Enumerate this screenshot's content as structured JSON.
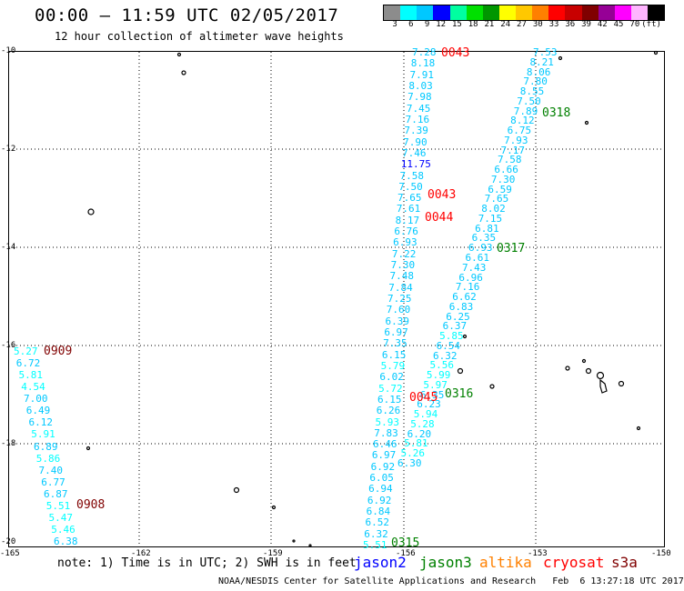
{
  "header": {
    "title": "00:00 – 11:59 UTC 02/05/2017",
    "subtitle": "12 hour collection of altimeter wave heights"
  },
  "colorbar": {
    "colors": [
      "#8c8c8c",
      "#00ffff",
      "#00c8ff",
      "#0000ff",
      "#00ffa0",
      "#00e000",
      "#009600",
      "#ffff00",
      "#ffc800",
      "#ff8000",
      "#ff0000",
      "#c80000",
      "#800000",
      "#960096",
      "#ff00ff",
      "#ffb4ff",
      "#000000"
    ],
    "labels": [
      "3",
      "6",
      "9",
      "12",
      "15",
      "18",
      "21",
      "24",
      "27",
      "30",
      "33",
      "36",
      "39",
      "42",
      "45",
      "70",
      "(ft)"
    ]
  },
  "axes": {
    "y_labels": [
      "-10",
      "-12",
      "-14",
      "-16",
      "-18",
      "-20"
    ],
    "x_labels": [
      "-165",
      "-162",
      "-159",
      "-156",
      "-153",
      "-150"
    ]
  },
  "tracks": [
    {
      "pass": "0043",
      "color": "#ff0000",
      "values": [
        "7.28",
        "8.18",
        "7.91",
        "8.03",
        "7.98",
        "7.45",
        "7.16",
        "7.39",
        "7.90",
        "7.46",
        "11.75",
        "7.58",
        "7.50",
        "7.65",
        "7.61",
        "8.17",
        "6.76",
        "6.93",
        "7.22",
        "7.30",
        "7.48",
        "7.84",
        "7.25",
        "7.60",
        "6.39",
        "6.97",
        "7.35",
        "6.15",
        "5.79",
        "6.02",
        "5.72",
        "6.15",
        "6.26",
        "5.93",
        "7.83",
        "6.46",
        "6.97",
        "6.92",
        "6.05",
        "6.94",
        "6.92",
        "6.84",
        "6.52",
        "6.32",
        "5.51"
      ]
    },
    {
      "pass": "0318",
      "color": "#008000",
      "values": [
        "7.53",
        "8.21",
        "8.06",
        "7.80",
        "8.55",
        "7.50",
        "7.89",
        "8.12",
        "6.75",
        "7.93",
        "7.17",
        "7.58",
        "6.66",
        "7.30",
        "6.59",
        "7.65",
        "8.02",
        "7.15",
        "6.81",
        "6.35",
        "6.93",
        "6.61",
        "7.43",
        "6.96",
        "7.16",
        "6.62",
        "6.83",
        "6.25",
        "6.37",
        "5.85",
        "6.54",
        "6.32",
        "5.56",
        "5.99",
        "5.97",
        "6.35",
        "6.23",
        "5.94",
        "5.28",
        "6.20",
        "5.81",
        "5.26",
        "6.30"
      ]
    },
    {
      "pass": "0909",
      "color": "#800000",
      "values": [
        "5.27",
        "6.72",
        "5.81",
        "4.54",
        "7.00",
        "6.49",
        "6.12",
        "5.91",
        "6.89",
        "5.86",
        "7.40",
        "6.77",
        "6.87",
        "5.51",
        "5.47",
        "5.46",
        "6.38"
      ]
    }
  ],
  "pass_labels": [
    {
      "id": "0043",
      "color": "#ff0000"
    },
    {
      "id": "0043",
      "color": "#ff0000"
    },
    {
      "id": "0044",
      "color": "#ff0000"
    },
    {
      "id": "0045",
      "color": "#ff0000"
    },
    {
      "id": "0318",
      "color": "#008000"
    },
    {
      "id": "0317",
      "color": "#008000"
    },
    {
      "id": "0316",
      "color": "#008000"
    },
    {
      "id": "0315",
      "color": "#008000"
    },
    {
      "id": "0909",
      "color": "#800000"
    },
    {
      "id": "0908",
      "color": "#800000"
    }
  ],
  "note": "note: 1) Time is in UTC; 2) SWH is in feet",
  "legend": [
    {
      "name": "jason2",
      "color": "#0000ff"
    },
    {
      "name": "jason3",
      "color": "#008000"
    },
    {
      "name": "altika",
      "color": "#ff8000"
    },
    {
      "name": "cryosat",
      "color": "#ff0000"
    },
    {
      "name": "s3a",
      "color": "#800000"
    }
  ],
  "footer": "NOAA/NESDIS Center for Satellite Applications and Research   Feb  6 13:27:18 UTC 2017"
}
